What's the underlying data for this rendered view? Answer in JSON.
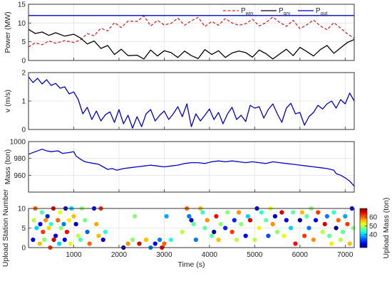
{
  "chart_data": [
    {
      "type": "line",
      "ylabel": "Power (MW)",
      "xlim": [
        0,
        7200
      ],
      "ylim": [
        0,
        15
      ],
      "yticks": [
        0,
        5,
        10,
        15
      ],
      "grid": true,
      "legend": {
        "placement": "top-right",
        "orientation": "horizontal"
      },
      "series": [
        {
          "name": "P",
          "sub": "win",
          "color": "#d62728",
          "style": "dashed",
          "x": [
            0,
            150,
            300,
            450,
            600,
            800,
            1000,
            1150,
            1300,
            1450,
            1600,
            1750,
            1900,
            2050,
            2200,
            2400,
            2550,
            2700,
            2850,
            3000,
            3150,
            3300,
            3450,
            3600,
            3750,
            3900,
            4050,
            4200,
            4350,
            4500,
            4650,
            4800,
            4950,
            5100,
            5250,
            5400,
            5550,
            5700,
            5850,
            6000,
            6150,
            6300,
            6450,
            6600,
            6750,
            6900,
            7050,
            7200
          ],
          "y": [
            3.6,
            4.7,
            4.2,
            5.2,
            4.6,
            5.3,
            4.8,
            5.5,
            7.2,
            6.6,
            8.6,
            7.9,
            10.1,
            8.8,
            10.5,
            10.4,
            11.9,
            9.2,
            10.7,
            9.5,
            9.9,
            11.3,
            9.4,
            10.6,
            11.5,
            9.1,
            10.4,
            9.4,
            11.2,
            10.0,
            9.4,
            9.8,
            11.0,
            9.2,
            10.1,
            11.6,
            10.2,
            9.1,
            10.7,
            8.5,
            9.5,
            10.8,
            9.2,
            8.2,
            10.1,
            8.6,
            7.1,
            5.9
          ]
        },
        {
          "name": "P",
          "sub": "grv",
          "color": "#000000",
          "style": "solid",
          "x": [
            0,
            150,
            300,
            450,
            600,
            800,
            1000,
            1150,
            1300,
            1450,
            1600,
            1750,
            1900,
            2050,
            2200,
            2400,
            2550,
            2700,
            2850,
            3000,
            3150,
            3300,
            3450,
            3600,
            3750,
            3900,
            4050,
            4200,
            4350,
            4500,
            4650,
            4800,
            4950,
            5100,
            5250,
            5400,
            5550,
            5700,
            5850,
            6000,
            6150,
            6300,
            6450,
            6600,
            6750,
            6900,
            7050,
            7200
          ],
          "y": [
            8.3,
            7.2,
            7.6,
            6.7,
            7.4,
            6.5,
            7.0,
            6.0,
            4.4,
            5.2,
            3.2,
            4.0,
            1.6,
            3.0,
            1.3,
            1.4,
            0.4,
            2.8,
            1.2,
            2.6,
            2.1,
            0.8,
            2.5,
            1.3,
            0.5,
            2.9,
            1.6,
            2.6,
            0.8,
            2.0,
            2.5,
            2.1,
            0.9,
            2.8,
            1.8,
            0.4,
            1.7,
            3.0,
            1.3,
            3.5,
            2.4,
            1.2,
            2.9,
            4.0,
            1.9,
            3.4,
            4.8,
            5.6
          ]
        },
        {
          "name": "P",
          "sub": "out",
          "color": "#0000cc",
          "style": "solid",
          "x": [
            0,
            7200
          ],
          "y": [
            12,
            12
          ]
        }
      ]
    },
    {
      "type": "line",
      "ylabel": "v (m/s)",
      "xlim": [
        0,
        7200
      ],
      "ylim": [
        0,
        2
      ],
      "yticks": [
        0,
        1,
        2
      ],
      "grid": true,
      "series": [
        {
          "color": "#0000cc",
          "style": "solid",
          "x": [
            0,
            100,
            200,
            300,
            400,
            500,
            600,
            700,
            800,
            900,
            1000,
            1100,
            1200,
            1300,
            1400,
            1500,
            1600,
            1700,
            1800,
            1900,
            2000,
            2100,
            2200,
            2300,
            2400,
            2500,
            2600,
            2700,
            2800,
            2900,
            3000,
            3100,
            3200,
            3300,
            3400,
            3500,
            3600,
            3700,
            3800,
            3900,
            4000,
            4100,
            4200,
            4300,
            4400,
            4500,
            4600,
            4700,
            4800,
            4900,
            5000,
            5100,
            5200,
            5300,
            5400,
            5500,
            5600,
            5700,
            5800,
            5900,
            6000,
            6100,
            6200,
            6300,
            6400,
            6500,
            6600,
            6700,
            6800,
            6900,
            7000,
            7100,
            7200
          ],
          "y": [
            1.85,
            1.65,
            1.8,
            1.6,
            1.75,
            1.55,
            1.62,
            1.45,
            1.5,
            1.25,
            1.32,
            1.05,
            0.55,
            0.78,
            0.35,
            0.65,
            0.3,
            0.52,
            0.62,
            0.25,
            0.7,
            0.2,
            0.5,
            0.05,
            0.45,
            0.1,
            0.55,
            0.7,
            0.3,
            0.5,
            0.65,
            0.35,
            0.55,
            0.8,
            0.45,
            0.9,
            0.1,
            0.55,
            0.3,
            0.5,
            0.72,
            0.35,
            0.6,
            0.2,
            0.55,
            0.78,
            0.35,
            0.5,
            0.28,
            0.85,
            0.75,
            0.8,
            0.4,
            0.7,
            0.9,
            0.55,
            0.25,
            0.75,
            0.92,
            0.55,
            0.6,
            0.15,
            0.45,
            0.6,
            0.85,
            0.72,
            0.9,
            1.0,
            0.75,
            1.05,
            0.9,
            1.28,
            1.0
          ]
        }
      ]
    },
    {
      "type": "line",
      "ylabel": "Mass (ton)",
      "xlim": [
        0,
        7200
      ],
      "ylim": [
        940,
        1000
      ],
      "yticks": [
        960,
        980,
        1000
      ],
      "grid": true,
      "series": [
        {
          "color": "#0000cc",
          "style": "solid",
          "x": [
            0,
            150,
            300,
            400,
            500,
            650,
            750,
            900,
            1000,
            1050,
            1150,
            1250,
            1350,
            1450,
            1550,
            1650,
            1750,
            1850,
            1950,
            2100,
            2250,
            2400,
            2550,
            2700,
            2850,
            3000,
            3150,
            3300,
            3450,
            3600,
            3750,
            3900,
            4050,
            4200,
            4350,
            4500,
            4650,
            4800,
            4950,
            5100,
            5250,
            5400,
            5550,
            5700,
            5850,
            6000,
            6150,
            6300,
            6450,
            6600,
            6750,
            6800,
            6900,
            7000,
            7100,
            7200
          ],
          "y": [
            985,
            988,
            991,
            989,
            988,
            989,
            986,
            987,
            988,
            983,
            979,
            976,
            975,
            974,
            973,
            970,
            967,
            968,
            966,
            968,
            969,
            970,
            971,
            972,
            971,
            970,
            971,
            972,
            974,
            975,
            975,
            974,
            976,
            977,
            976,
            977,
            976,
            975,
            976,
            975,
            974,
            976,
            975,
            974,
            973,
            972,
            971,
            970,
            969,
            968,
            966,
            962,
            960,
            957,
            953,
            947
          ]
        }
      ]
    },
    {
      "type": "scatter",
      "xlabel": "Time (s)",
      "ylabel": "Upload Station Number",
      "xlim": [
        0,
        7200
      ],
      "ylim": [
        0,
        10
      ],
      "yticks": [
        0,
        5,
        10
      ],
      "xticks": [
        1000,
        2000,
        3000,
        4000,
        5000,
        6000,
        7000
      ],
      "grid": true,
      "colorbar": {
        "label": "Upload Mass (ton)",
        "range": [
          25,
          70
        ],
        "ticks": [
          40,
          50,
          60
        ],
        "colormap": "jet"
      },
      "points": [
        {
          "x": 150,
          "y": 10,
          "m": 60
        },
        {
          "x": 300,
          "y": 9,
          "m": 45
        },
        {
          "x": 420,
          "y": 8,
          "m": 32
        },
        {
          "x": 550,
          "y": 10,
          "m": 66
        },
        {
          "x": 700,
          "y": 9,
          "m": 52
        },
        {
          "x": 820,
          "y": 10,
          "m": 28
        },
        {
          "x": 950,
          "y": 10,
          "m": 40
        },
        {
          "x": 1000,
          "y": 8,
          "m": 56
        },
        {
          "x": 1180,
          "y": 10,
          "m": 48
        },
        {
          "x": 1450,
          "y": 10,
          "m": 30
        },
        {
          "x": 1600,
          "y": 10,
          "m": 63
        },
        {
          "x": 120,
          "y": 7,
          "m": 50
        },
        {
          "x": 260,
          "y": 6,
          "m": 30
        },
        {
          "x": 380,
          "y": 7,
          "m": 58
        },
        {
          "x": 500,
          "y": 6,
          "m": 44
        },
        {
          "x": 650,
          "y": 7,
          "m": 60
        },
        {
          "x": 780,
          "y": 6,
          "m": 36
        },
        {
          "x": 900,
          "y": 7,
          "m": 54
        },
        {
          "x": 1050,
          "y": 6,
          "m": 28
        },
        {
          "x": 1250,
          "y": 7,
          "m": 47
        },
        {
          "x": 1500,
          "y": 6,
          "m": 57
        },
        {
          "x": 180,
          "y": 5,
          "m": 40
        },
        {
          "x": 320,
          "y": 4,
          "m": 62
        },
        {
          "x": 450,
          "y": 5,
          "m": 55
        },
        {
          "x": 600,
          "y": 3,
          "m": 30
        },
        {
          "x": 720,
          "y": 5,
          "m": 48
        },
        {
          "x": 850,
          "y": 4,
          "m": 64
        },
        {
          "x": 1100,
          "y": 3,
          "m": 50
        },
        {
          "x": 1300,
          "y": 4,
          "m": 35
        },
        {
          "x": 1550,
          "y": 3,
          "m": 56
        },
        {
          "x": 1700,
          "y": 4,
          "m": 44
        },
        {
          "x": 100,
          "y": 2,
          "m": 30
        },
        {
          "x": 250,
          "y": 1,
          "m": 56
        },
        {
          "x": 350,
          "y": 2,
          "m": 48
        },
        {
          "x": 480,
          "y": 0,
          "m": 62
        },
        {
          "x": 560,
          "y": 2,
          "m": 66
        },
        {
          "x": 680,
          "y": 1,
          "m": 40
        },
        {
          "x": 800,
          "y": 2,
          "m": 30
        },
        {
          "x": 930,
          "y": 1,
          "m": 52
        },
        {
          "x": 1150,
          "y": 2,
          "m": 45
        },
        {
          "x": 1350,
          "y": 1,
          "m": 60
        },
        {
          "x": 1650,
          "y": 2,
          "m": 28
        },
        {
          "x": 2100,
          "y": 0,
          "m": 26
        },
        {
          "x": 2200,
          "y": 1,
          "m": 58
        },
        {
          "x": 2300,
          "y": 2,
          "m": 48
        },
        {
          "x": 2450,
          "y": 1,
          "m": 66
        },
        {
          "x": 2350,
          "y": 8,
          "m": 48
        },
        {
          "x": 2600,
          "y": 2,
          "m": 56
        },
        {
          "x": 2700,
          "y": 0,
          "m": 36
        },
        {
          "x": 2800,
          "y": 1,
          "m": 30
        },
        {
          "x": 2950,
          "y": 0,
          "m": 66
        },
        {
          "x": 2900,
          "y": 2,
          "m": 36
        },
        {
          "x": 3000,
          "y": 1,
          "m": 60
        },
        {
          "x": 3150,
          "y": 2,
          "m": 44
        },
        {
          "x": 3050,
          "y": 8,
          "m": 38
        },
        {
          "x": 3400,
          "y": 4,
          "m": 50
        },
        {
          "x": 3500,
          "y": 10,
          "m": 60
        },
        {
          "x": 3550,
          "y": 8,
          "m": 36
        },
        {
          "x": 3600,
          "y": 7,
          "m": 28
        },
        {
          "x": 3650,
          "y": 6,
          "m": 46
        },
        {
          "x": 3700,
          "y": 2,
          "m": 36
        },
        {
          "x": 3800,
          "y": 10,
          "m": 56
        },
        {
          "x": 3850,
          "y": 9,
          "m": 44
        },
        {
          "x": 3900,
          "y": 5,
          "m": 46
        },
        {
          "x": 3950,
          "y": 7,
          "m": 58
        },
        {
          "x": 4050,
          "y": 3,
          "m": 46
        },
        {
          "x": 4100,
          "y": 4,
          "m": 26
        },
        {
          "x": 4150,
          "y": 8,
          "m": 64
        },
        {
          "x": 4200,
          "y": 2,
          "m": 56
        },
        {
          "x": 4250,
          "y": 6,
          "m": 48
        },
        {
          "x": 4350,
          "y": 5,
          "m": 32
        },
        {
          "x": 4400,
          "y": 9,
          "m": 48
        },
        {
          "x": 4500,
          "y": 4,
          "m": 62
        },
        {
          "x": 4550,
          "y": 7,
          "m": 32
        },
        {
          "x": 4600,
          "y": 2,
          "m": 50
        },
        {
          "x": 4650,
          "y": 9,
          "m": 58
        },
        {
          "x": 4700,
          "y": 6,
          "m": 48
        },
        {
          "x": 4800,
          "y": 3,
          "m": 30
        },
        {
          "x": 4850,
          "y": 8,
          "m": 40
        },
        {
          "x": 4900,
          "y": 7,
          "m": 66
        },
        {
          "x": 5000,
          "y": 2,
          "m": 50
        },
        {
          "x": 5050,
          "y": 10,
          "m": 28
        },
        {
          "x": 5100,
          "y": 5,
          "m": 52
        },
        {
          "x": 5150,
          "y": 9,
          "m": 44
        },
        {
          "x": 5250,
          "y": 7,
          "m": 46
        },
        {
          "x": 5300,
          "y": 3,
          "m": 34
        },
        {
          "x": 5350,
          "y": 10,
          "m": 52
        },
        {
          "x": 5400,
          "y": 6,
          "m": 58
        },
        {
          "x": 5450,
          "y": 8,
          "m": 28
        },
        {
          "x": 5500,
          "y": 4,
          "m": 48
        },
        {
          "x": 5600,
          "y": 9,
          "m": 66
        },
        {
          "x": 5650,
          "y": 3,
          "m": 52
        },
        {
          "x": 5700,
          "y": 7,
          "m": 30
        },
        {
          "x": 5800,
          "y": 5,
          "m": 40
        },
        {
          "x": 5850,
          "y": 9,
          "m": 46
        },
        {
          "x": 5900,
          "y": 1,
          "m": 64
        },
        {
          "x": 6000,
          "y": 7,
          "m": 26
        },
        {
          "x": 6050,
          "y": 9,
          "m": 56
        },
        {
          "x": 6100,
          "y": 3,
          "m": 62
        },
        {
          "x": 6150,
          "y": 8,
          "m": 46
        },
        {
          "x": 6200,
          "y": 5,
          "m": 36
        },
        {
          "x": 6250,
          "y": 10,
          "m": 48
        },
        {
          "x": 6300,
          "y": 2,
          "m": 58
        },
        {
          "x": 6350,
          "y": 7,
          "m": 30
        },
        {
          "x": 6400,
          "y": 9,
          "m": 62
        },
        {
          "x": 6500,
          "y": 4,
          "m": 50
        },
        {
          "x": 6550,
          "y": 6,
          "m": 66
        },
        {
          "x": 6600,
          "y": 8,
          "m": 36
        },
        {
          "x": 6650,
          "y": 3,
          "m": 46
        },
        {
          "x": 6700,
          "y": 1,
          "m": 54
        },
        {
          "x": 6750,
          "y": 9,
          "m": 44
        },
        {
          "x": 6800,
          "y": 5,
          "m": 26
        },
        {
          "x": 6850,
          "y": 7,
          "m": 60
        },
        {
          "x": 6900,
          "y": 2,
          "m": 50
        },
        {
          "x": 6950,
          "y": 4,
          "m": 46
        },
        {
          "x": 7000,
          "y": 8,
          "m": 38
        },
        {
          "x": 7050,
          "y": 6,
          "m": 62
        },
        {
          "x": 7100,
          "y": 1,
          "m": 56
        },
        {
          "x": 7150,
          "y": 10,
          "m": 30
        },
        {
          "x": 7180,
          "y": 5,
          "m": 48
        }
      ]
    }
  ]
}
